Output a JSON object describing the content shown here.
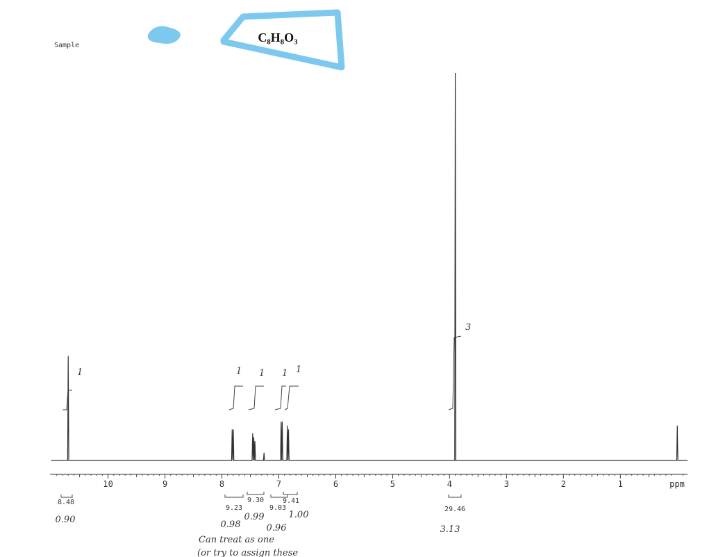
{
  "header": {
    "sample_label": "Sample",
    "formula": "C₈H₈O₃"
  },
  "chart_data": {
    "type": "line",
    "x": [
      11.0,
      10.71,
      10.7,
      10.69,
      7.83,
      7.82,
      7.81,
      7.8,
      7.79,
      7.47,
      7.46,
      7.45,
      7.44,
      7.43,
      7.42,
      7.41,
      7.27,
      7.26,
      7.25,
      6.97,
      6.96,
      6.95,
      6.94,
      6.93,
      6.86,
      6.85,
      6.84,
      6.83,
      6.82,
      3.91,
      3.9,
      3.89,
      0.01,
      0.0,
      -0.01,
      -0.18
    ],
    "values": [
      0,
      0,
      27,
      0,
      0,
      8,
      0,
      8,
      0,
      0,
      7,
      0,
      6,
      0,
      5,
      0,
      0,
      2,
      0,
      0,
      10,
      0,
      10,
      0,
      0,
      9,
      0,
      8,
      0,
      0,
      100,
      0,
      0,
      9,
      0,
      0
    ],
    "color": "#333333",
    "xlim": [
      11.02,
      -0.18
    ],
    "xticks": [
      10,
      9,
      8,
      7,
      6,
      5,
      4,
      3,
      2,
      1
    ],
    "x_label": "ppm",
    "ylim": [
      0,
      100
    ]
  },
  "integrals": [
    "8.48",
    "9.23",
    "9.30",
    "9.03",
    "9.41",
    "29.46"
  ],
  "annotations": {
    "integral_notes": [
      "0.90",
      "0.98",
      "0.99",
      "0.96",
      "1.00",
      "3.13"
    ],
    "peak_counts": [
      "1",
      "1",
      "1",
      "1",
      "1",
      "3"
    ],
    "note_lines": [
      "Can treat as one",
      "(or try to assign these"
    ]
  }
}
